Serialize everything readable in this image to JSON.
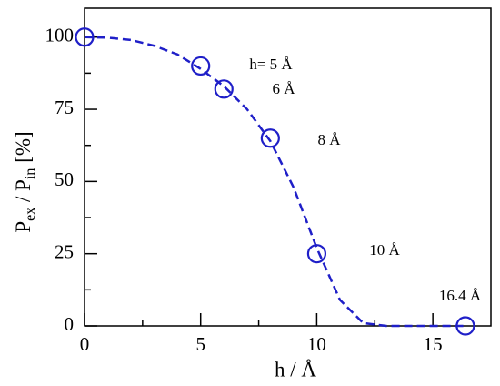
{
  "chart_data": {
    "type": "scatter",
    "xlabel": "h / Å",
    "ylabel": [
      "P",
      "ex",
      " / P",
      "in",
      " [%]"
    ],
    "xlim": [
      0,
      17.5
    ],
    "ylim": [
      0,
      110
    ],
    "xticks": [
      0,
      5,
      10,
      15
    ],
    "yticks": [
      0,
      25,
      50,
      75,
      100
    ],
    "xminorticks": [
      2.5,
      7.5,
      12.5
    ],
    "yminorticks": [
      12.5,
      37.5,
      62.5,
      87.5
    ],
    "series": [
      {
        "x": [
          0,
          5,
          6,
          8,
          10,
          16.4
        ],
        "values": [
          100,
          90,
          82,
          65,
          25,
          0
        ],
        "color": "#1f1fc8",
        "marker": "circle"
      },
      {
        "x": [
          0,
          1,
          2,
          3,
          4,
          5,
          6,
          7,
          8,
          9,
          10,
          11,
          12,
          13,
          14,
          15,
          16.4
        ],
        "values": [
          100,
          99.8,
          99,
          97,
          94,
          89,
          83,
          75,
          64,
          48,
          27,
          9,
          1,
          0,
          0,
          0,
          0
        ],
        "color": "#1f1fc8",
        "style": "dashed"
      }
    ],
    "annotations": [
      "h= 5 Å",
      "6 Å",
      "8 Å",
      "10 Å",
      "16.4 Å"
    ]
  }
}
